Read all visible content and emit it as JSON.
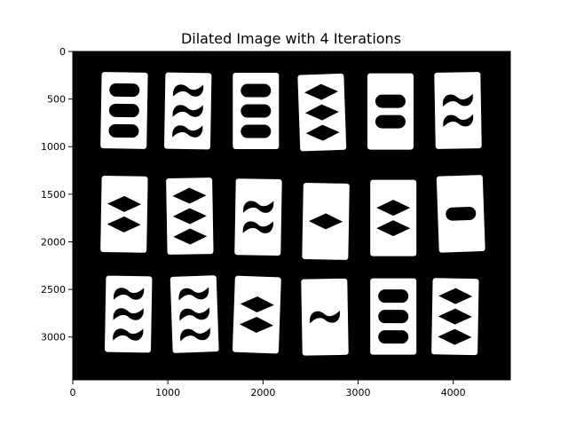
{
  "chart_data": {
    "type": "image",
    "title": "Dilated Image with 4 Iterations",
    "xlim": [
      0,
      4600
    ],
    "ylim": [
      3450,
      0
    ],
    "x_ticks": [
      0,
      1000,
      2000,
      3000,
      4000
    ],
    "y_ticks": [
      0,
      500,
      1000,
      1500,
      2000,
      2500,
      3000
    ],
    "background_color": "#000000",
    "card_color": "#ffffff",
    "symbol_color": "#000000",
    "cards": [
      {
        "row": 0,
        "col": 0,
        "center": [
          540,
          620
        ],
        "count": 3,
        "shape": "oval",
        "angle": 1
      },
      {
        "row": 0,
        "col": 1,
        "center": [
          1210,
          625
        ],
        "count": 3,
        "shape": "squiggle",
        "angle": 1
      },
      {
        "row": 0,
        "col": 2,
        "center": [
          1925,
          625
        ],
        "count": 3,
        "shape": "oval",
        "angle": 0
      },
      {
        "row": 0,
        "col": 3,
        "center": [
          2620,
          640
        ],
        "count": 3,
        "shape": "diamond",
        "angle": -2
      },
      {
        "row": 0,
        "col": 4,
        "center": [
          3340,
          630
        ],
        "count": 2,
        "shape": "oval",
        "angle": 0
      },
      {
        "row": 0,
        "col": 5,
        "center": [
          4050,
          620
        ],
        "count": 2,
        "shape": "squiggle",
        "angle": -1
      },
      {
        "row": 1,
        "col": 0,
        "center": [
          540,
          1710
        ],
        "count": 2,
        "shape": "diamond",
        "angle": 1
      },
      {
        "row": 1,
        "col": 1,
        "center": [
          1230,
          1730
        ],
        "count": 3,
        "shape": "diamond",
        "angle": -1
      },
      {
        "row": 1,
        "col": 2,
        "center": [
          1950,
          1740
        ],
        "count": 2,
        "shape": "squiggle",
        "angle": 1
      },
      {
        "row": 1,
        "col": 3,
        "center": [
          2660,
          1785
        ],
        "count": 1,
        "shape": "diamond",
        "angle": 1
      },
      {
        "row": 1,
        "col": 4,
        "center": [
          3370,
          1750
        ],
        "count": 2,
        "shape": "diamond",
        "angle": 0
      },
      {
        "row": 1,
        "col": 5,
        "center": [
          4080,
          1705
        ],
        "count": 1,
        "shape": "oval",
        "angle": -2
      },
      {
        "row": 2,
        "col": 0,
        "center": [
          585,
          2760
        ],
        "count": 3,
        "shape": "squiggle",
        "angle": 1
      },
      {
        "row": 2,
        "col": 1,
        "center": [
          1280,
          2760
        ],
        "count": 3,
        "shape": "squiggle",
        "angle": -2
      },
      {
        "row": 2,
        "col": 2,
        "center": [
          1935,
          2765
        ],
        "count": 2,
        "shape": "diamond",
        "angle": 2
      },
      {
        "row": 2,
        "col": 3,
        "center": [
          2650,
          2790
        ],
        "count": 1,
        "shape": "squiggle",
        "angle": -1
      },
      {
        "row": 2,
        "col": 4,
        "center": [
          3370,
          2785
        ],
        "count": 3,
        "shape": "oval",
        "angle": 0
      },
      {
        "row": 2,
        "col": 5,
        "center": [
          4020,
          2785
        ],
        "count": 3,
        "shape": "diamond",
        "angle": 1
      }
    ]
  }
}
